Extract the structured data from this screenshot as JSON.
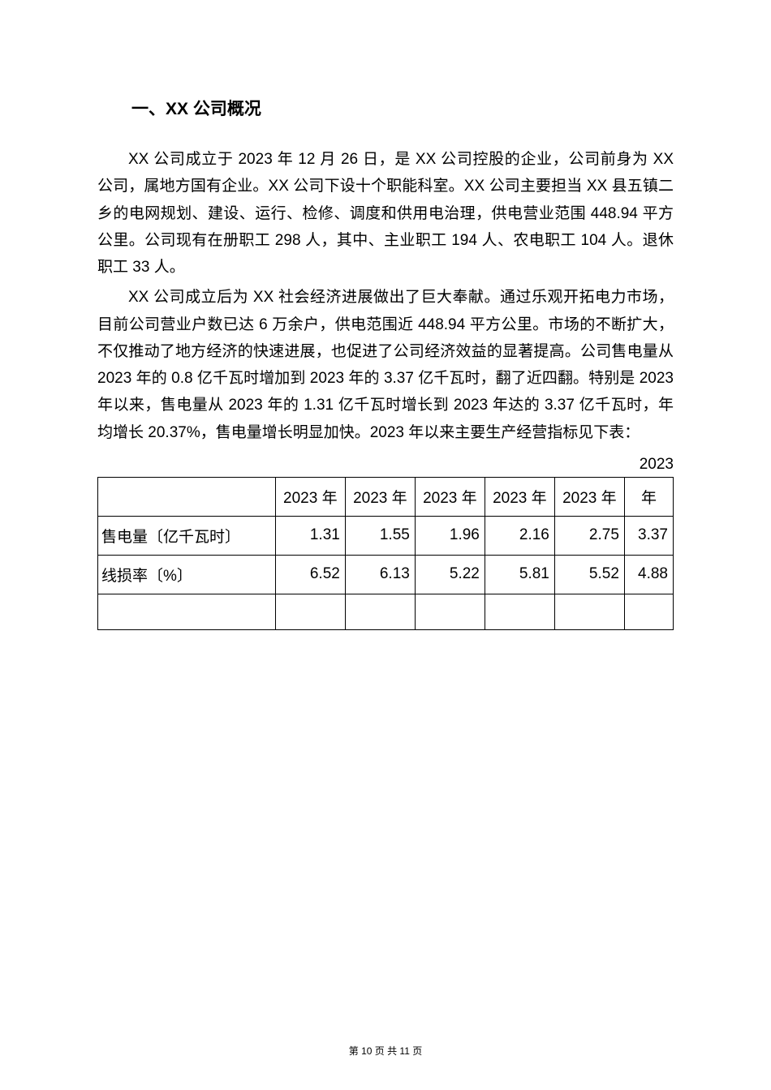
{
  "heading": "一、XX 公司概况",
  "para1": "XX 公司成立于 2023 年 12 月 26 日，是 XX 公司控股的企业，公司前身为 XX 公司，属地方国有企业。XX 公司下设十个职能科室。XX 公司主要担当 XX 县五镇二乡的电网规划、建设、运行、检修、调度和供用电治理，供电营业范围 448.94 平方公里。公司现有在册职工 298 人，其中、主业职工 194 人、农电职工 104 人。退休职工 33 人。",
  "para2": "XX 公司成立后为 XX 社会经济进展做出了巨大奉献。通过乐观开拓电力市场，目前公司营业户数已达 6 万余户，供电范围近 448.94 平方公里。市场的不断扩大，不仅推动了地方经济的快速进展，也促进了公司经济效益的显著提高。公司售电量从 2023 年的 0.8 亿千瓦时增加到 2023 年的 3.37 亿千瓦时，翻了近四翻。特别是 2023 年以来，售电量从 2023 年的 1.31 亿千瓦时增长到 2023 年达的 3.37 亿千瓦时，年均增长 20.37%，售电量增长明显加快。2023 年以来主要生产经营指标见下表：",
  "year_label": "2023",
  "table": {
    "header": [
      "",
      "2023 年",
      "2023 年",
      "2023 年",
      "2023 年",
      "2023 年",
      "年"
    ],
    "rows": [
      {
        "label": "售电量〔亿千瓦时〕",
        "values": [
          "1.31",
          "1.55",
          "1.96",
          "2.16",
          "2.75",
          "3.37"
        ]
      },
      {
        "label": "线损率〔%〕",
        "values": [
          "6.52",
          "6.13",
          "5.22",
          "5.81",
          "5.52",
          "4.88"
        ]
      }
    ]
  },
  "footer": "第 10 页 共 11 页",
  "colors": {
    "text": "#000000",
    "background": "#ffffff",
    "border": "#000000"
  }
}
